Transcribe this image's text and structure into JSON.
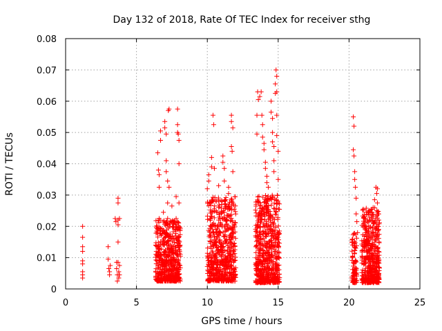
{
  "chart_data": {
    "type": "scatter",
    "title": "Day 132 of 2018, Rate Of TEC Index for receiver sthg",
    "xlabel": "GPS time / hours",
    "ylabel": "ROTI / TECUs",
    "xlim": [
      0,
      25
    ],
    "ylim": [
      0,
      0.08
    ],
    "xticks": [
      0,
      5,
      10,
      15,
      20,
      25
    ],
    "xtick_labels": [
      "0",
      "5",
      "10",
      "15",
      "20",
      "25"
    ],
    "yticks": [
      0,
      0.01,
      0.02,
      0.03,
      0.04,
      0.05,
      0.06,
      0.07,
      0.08
    ],
    "ytick_labels": [
      "0",
      "0.01",
      "0.02",
      "0.03",
      "0.04",
      "0.05",
      "0.06",
      "0.07",
      "0.08"
    ],
    "grid": true,
    "marker": "+",
    "color": "#ff0000",
    "series": [
      {
        "name": "ROTI",
        "points": [
          [
            1.2,
            0.02
          ],
          [
            1.2,
            0.0165
          ],
          [
            1.2,
            0.0135
          ],
          [
            1.2,
            0.012
          ],
          [
            1.2,
            0.009
          ],
          [
            1.2,
            0.008
          ],
          [
            1.2,
            0.0055
          ],
          [
            1.2,
            0.0045
          ],
          [
            1.2,
            0.0035
          ],
          [
            3.0,
            0.0135
          ],
          [
            3.0,
            0.0095
          ],
          [
            3.05,
            0.0065
          ],
          [
            3.1,
            0.0055
          ],
          [
            3.1,
            0.0045
          ],
          [
            3.15,
            0.0075
          ],
          [
            3.5,
            0.0225
          ],
          [
            3.55,
            0.0215
          ],
          [
            3.6,
            0.0085
          ],
          [
            3.6,
            0.0065
          ],
          [
            3.65,
            0.0045
          ],
          [
            3.65,
            0.0025
          ],
          [
            3.7,
            0.029
          ],
          [
            3.7,
            0.0275
          ],
          [
            3.7,
            0.022
          ],
          [
            3.7,
            0.0205
          ],
          [
            3.7,
            0.015
          ],
          [
            3.7,
            0.0085
          ],
          [
            3.75,
            0.0055
          ],
          [
            3.75,
            0.0035
          ],
          [
            3.8,
            0.0225
          ],
          [
            3.8,
            0.0075
          ],
          [
            3.8,
            0.0045
          ],
          [
            6.5,
            0.0435
          ],
          [
            6.55,
            0.038
          ],
          [
            6.6,
            0.0365
          ],
          [
            6.6,
            0.0325
          ],
          [
            6.6,
            0.0225
          ],
          [
            6.7,
            0.0505
          ],
          [
            6.7,
            0.0475
          ],
          [
            6.8,
            0.0175
          ],
          [
            6.9,
            0.0245
          ],
          [
            7.0,
            0.0535
          ],
          [
            7.0,
            0.0515
          ],
          [
            7.1,
            0.0495
          ],
          [
            7.1,
            0.041
          ],
          [
            7.1,
            0.0375
          ],
          [
            7.2,
            0.0345
          ],
          [
            7.2,
            0.0275
          ],
          [
            7.2,
            0.0225
          ],
          [
            7.25,
            0.057
          ],
          [
            7.3,
            0.0575
          ],
          [
            7.3,
            0.0325
          ],
          [
            7.5,
            0.0265
          ],
          [
            7.6,
            0.0215
          ],
          [
            7.8,
            0.0295
          ],
          [
            7.8,
            0.0225
          ],
          [
            7.9,
            0.0575
          ],
          [
            7.9,
            0.0525
          ],
          [
            7.9,
            0.05
          ],
          [
            7.95,
            0.0495
          ],
          [
            8.0,
            0.0475
          ],
          [
            8.0,
            0.04
          ],
          [
            8.0,
            0.0275
          ],
          [
            8.0,
            0.015
          ],
          [
            8.05,
            0.012
          ],
          [
            10.0,
            0.032
          ],
          [
            10.1,
            0.0345
          ],
          [
            10.1,
            0.0365
          ],
          [
            10.2,
            0.0275
          ],
          [
            10.3,
            0.042
          ],
          [
            10.3,
            0.039
          ],
          [
            10.4,
            0.0555
          ],
          [
            10.45,
            0.0525
          ],
          [
            10.5,
            0.0385
          ],
          [
            10.5,
            0.025
          ],
          [
            10.6,
            0.019
          ],
          [
            10.8,
            0.033
          ],
          [
            10.8,
            0.022
          ],
          [
            11.1,
            0.0425
          ],
          [
            11.1,
            0.0405
          ],
          [
            11.2,
            0.0385
          ],
          [
            11.2,
            0.0345
          ],
          [
            11.3,
            0.0285
          ],
          [
            11.3,
            0.026
          ],
          [
            11.5,
            0.0325
          ],
          [
            11.5,
            0.0305
          ],
          [
            11.7,
            0.0555
          ],
          [
            11.7,
            0.0535
          ],
          [
            11.7,
            0.0455
          ],
          [
            11.75,
            0.044
          ],
          [
            11.8,
            0.0515
          ],
          [
            11.8,
            0.0375
          ],
          [
            11.8,
            0.0275
          ],
          [
            11.9,
            0.0255
          ],
          [
            13.5,
            0.0495
          ],
          [
            13.5,
            0.0555
          ],
          [
            13.55,
            0.063
          ],
          [
            13.6,
            0.0605
          ],
          [
            13.7,
            0.0615
          ],
          [
            13.8,
            0.063
          ],
          [
            13.85,
            0.0555
          ],
          [
            13.9,
            0.0525
          ],
          [
            13.9,
            0.0485
          ],
          [
            14.0,
            0.0465
          ],
          [
            14.0,
            0.0445
          ],
          [
            14.1,
            0.0405
          ],
          [
            14.1,
            0.0385
          ],
          [
            14.2,
            0.036
          ],
          [
            14.2,
            0.034
          ],
          [
            14.3,
            0.0325
          ],
          [
            14.5,
            0.06
          ],
          [
            14.5,
            0.0565
          ],
          [
            14.6,
            0.0545
          ],
          [
            14.6,
            0.05
          ],
          [
            14.6,
            0.047
          ],
          [
            14.7,
            0.0455
          ],
          [
            14.7,
            0.041
          ],
          [
            14.7,
            0.0375
          ],
          [
            14.8,
            0.0655
          ],
          [
            14.8,
            0.0625
          ],
          [
            14.85,
            0.07
          ],
          [
            14.9,
            0.068
          ],
          [
            14.9,
            0.063
          ],
          [
            14.9,
            0.0555
          ],
          [
            14.9,
            0.049
          ],
          [
            15.0,
            0.044
          ],
          [
            15.0,
            0.035
          ],
          [
            15.0,
            0.0275
          ],
          [
            20.3,
            0.055
          ],
          [
            20.35,
            0.052
          ],
          [
            20.3,
            0.0445
          ],
          [
            20.35,
            0.0425
          ],
          [
            20.4,
            0.0375
          ],
          [
            20.4,
            0.035
          ],
          [
            20.45,
            0.0325
          ],
          [
            20.5,
            0.029
          ],
          [
            20.5,
            0.024
          ],
          [
            20.55,
            0.0215
          ],
          [
            20.6,
            0.018
          ],
          [
            21.0,
            0.0255
          ],
          [
            21.1,
            0.0225
          ],
          [
            21.2,
            0.018
          ],
          [
            21.3,
            0.0155
          ],
          [
            21.6,
            0.0245
          ],
          [
            21.7,
            0.026
          ],
          [
            21.8,
            0.0285
          ],
          [
            21.9,
            0.0325
          ],
          [
            21.95,
            0.0305
          ],
          [
            22.0,
            0.032
          ],
          [
            22.0,
            0.0275
          ],
          [
            22.05,
            0.024
          ],
          [
            22.1,
            0.022
          ]
        ],
        "clusters": [
          {
            "x": [
              6.35,
              8.1
            ],
            "y": [
              0.0025,
              0.022
            ],
            "n": 560
          },
          {
            "x": [
              10.0,
              12.0
            ],
            "y": [
              0.0025,
              0.0295
            ],
            "n": 620
          },
          {
            "x": [
              13.4,
              15.1
            ],
            "y": [
              0.002,
              0.03
            ],
            "n": 640
          },
          {
            "x": [
              20.2,
              20.55
            ],
            "y": [
              0.002,
              0.018
            ],
            "n": 90
          },
          {
            "x": [
              20.9,
              22.15
            ],
            "y": [
              0.002,
              0.026
            ],
            "n": 480
          }
        ]
      }
    ]
  }
}
